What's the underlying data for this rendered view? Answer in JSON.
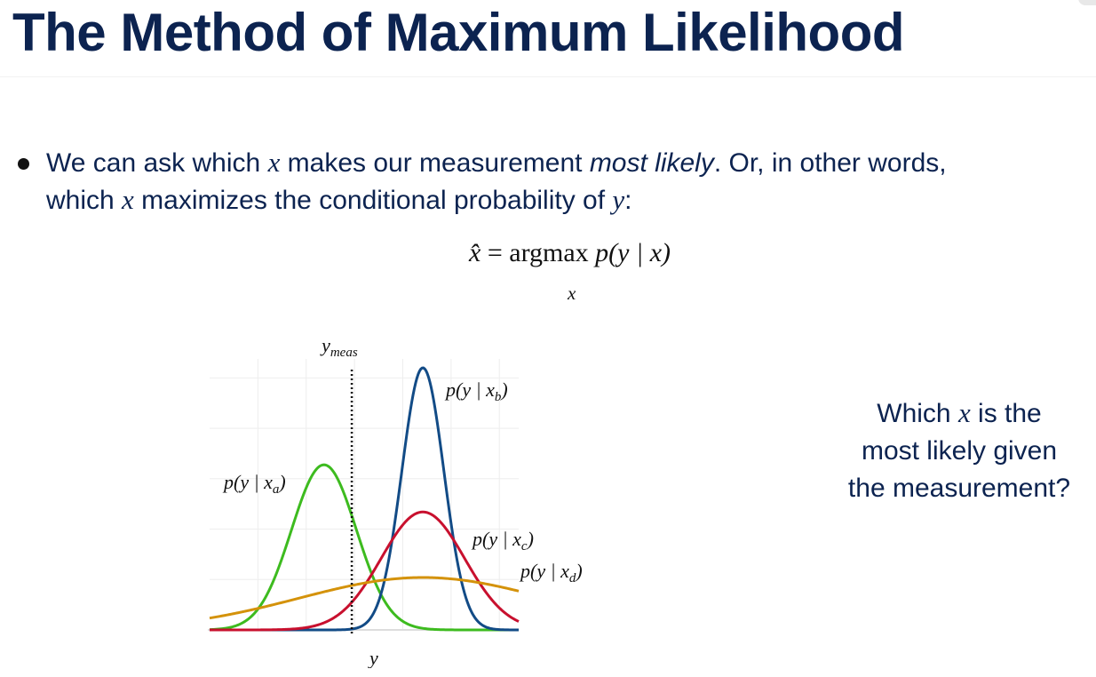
{
  "slide": {
    "title": "The Method of Maximum Likelihood"
  },
  "bullet": {
    "line1_pre": "We can ask which ",
    "var_x": "x",
    "line1_mid": " makes our measurement ",
    "emphasis": "most likely",
    "line1_post": ". Or, in other words,",
    "line2_pre": "which ",
    "line2_mid": " maximizes the conditional probability of ",
    "var_y": "y",
    "line2_post": ":"
  },
  "equation": {
    "lhs": "x̂",
    "equals": "=",
    "operator": "argmax",
    "rhs": "p(y | x)",
    "subscript": "x"
  },
  "question": {
    "line1_pre": "Which ",
    "var_x": "x",
    "line1_post": " is the",
    "line2": "most likely given",
    "line3": "the  measurement?"
  },
  "chart_data": {
    "type": "line",
    "xlabel": "y",
    "marker_label": "y",
    "marker_label_sub": "meas",
    "y_meas": 4.6,
    "x_range": [
      0,
      10
    ],
    "y_range": [
      0,
      1
    ],
    "grid": true,
    "series": [
      {
        "name_pre": "p(y | x",
        "name_sub": "a",
        "name_post": ")",
        "color": "#3dbb1f",
        "mean": 3.7,
        "sd": 1.05,
        "peak": 0.63
      },
      {
        "name_pre": "p(y | x",
        "name_sub": "b",
        "name_post": ")",
        "color": "#124b86",
        "mean": 6.9,
        "sd": 0.68,
        "peak": 1.0
      },
      {
        "name_pre": "p(y | x",
        "name_sub": "c",
        "name_post": ")",
        "color": "#c8102e",
        "mean": 6.9,
        "sd": 1.35,
        "peak": 0.45
      },
      {
        "name_pre": "p(y | x",
        "name_sub": "d",
        "name_post": ")",
        "color": "#d4920a",
        "mean": 6.9,
        "sd": 4.0,
        "peak": 0.2
      }
    ]
  }
}
